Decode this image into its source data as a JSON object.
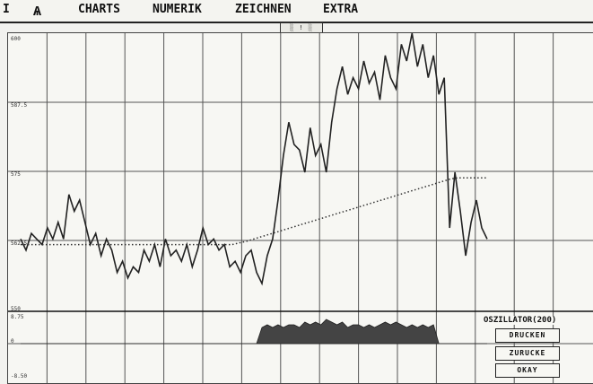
{
  "menu": {
    "left_mark": "I",
    "logo": "Ѧ",
    "items": [
      "CHARTS",
      "NUMERIK",
      "ZEICHNEN",
      "EXTRA"
    ]
  },
  "window_title": "░ ! ░",
  "chart": {
    "y_ticks": [
      "600",
      "587.5",
      "575",
      "562.5",
      "550"
    ],
    "osc_ticks": [
      "8.75",
      "0",
      "-8.50"
    ]
  },
  "oscillator": {
    "title": "OSZILLATOR(200)",
    "buttons": [
      "DRUCKEN",
      "ZURUCKE",
      "OKAY"
    ]
  },
  "chart_data": {
    "type": "line",
    "ylim": [
      550,
      600
    ],
    "series": [
      {
        "values": [
          563,
          561,
          564,
          563,
          562,
          565,
          563,
          566,
          563,
          571,
          568,
          570,
          566,
          562,
          564,
          560,
          563,
          561,
          557,
          559,
          556,
          558,
          557,
          561,
          559,
          562,
          558,
          563,
          560,
          561,
          559,
          562,
          558,
          561,
          565,
          562,
          563,
          561,
          562,
          558,
          559,
          557,
          560,
          561,
          557,
          555,
          560,
          563,
          570,
          578,
          584,
          580,
          579,
          575,
          583,
          578,
          580,
          575,
          584,
          590,
          594,
          589,
          592,
          590,
          595,
          591,
          593,
          588,
          596,
          592,
          590,
          598,
          595,
          600,
          594,
          598,
          592,
          596,
          589,
          592,
          565,
          575,
          568,
          560,
          566,
          570,
          565,
          563
        ]
      },
      {
        "values": [
          562,
          562,
          562,
          562,
          562,
          562,
          562,
          562,
          562,
          562,
          562,
          562,
          562,
          562,
          562,
          562,
          562,
          562,
          562,
          562,
          562,
          562,
          562,
          562,
          562,
          562,
          562,
          562,
          562,
          562,
          562.3,
          562.6,
          563,
          563.4,
          563.8,
          564.2,
          564.6,
          565,
          565.4,
          565.8,
          566.2,
          566.6,
          567,
          567.4,
          567.8,
          568.2,
          568.6,
          569,
          569.4,
          569.8,
          570.2,
          570.6,
          571,
          571.4,
          571.8,
          572.2,
          572.6,
          573,
          573.4,
          573.8,
          574,
          574,
          574,
          574,
          574
        ]
      }
    ],
    "oscillator": {
      "values": [
        0,
        0,
        0,
        0,
        0,
        0,
        0,
        0,
        0,
        0,
        0,
        0,
        0,
        0,
        0,
        0,
        0,
        0,
        0,
        0,
        0,
        0,
        0,
        0,
        0,
        0,
        0,
        0,
        0,
        0,
        0,
        0,
        0,
        0,
        0,
        0,
        0,
        0,
        0,
        0,
        0,
        0,
        0,
        0,
        0,
        6,
        7,
        6,
        7,
        6,
        7,
        7,
        6,
        8,
        7,
        8,
        7,
        9,
        8,
        7,
        8,
        6,
        7,
        7,
        6,
        7,
        6,
        7,
        8,
        7,
        8,
        7,
        6,
        7,
        6,
        7,
        6,
        7,
        0,
        0,
        0,
        0,
        0,
        0,
        0,
        0,
        0,
        0
      ]
    }
  }
}
